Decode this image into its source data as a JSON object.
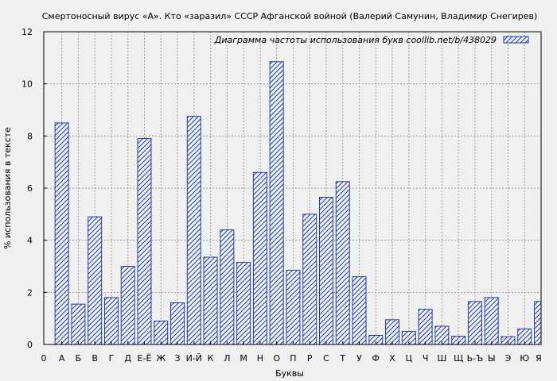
{
  "chart_data": {
    "type": "bar",
    "title": "Смертоносный вирус «А». Кто «заразил» СССР Афганской войной (Валерий Самунин, Владимир Снегирев)",
    "xlabel": "Буквы",
    "ylabel": "% использования в тексте",
    "legend": "Диаграмма частоты использования букв  coollib.net/b/438029",
    "legend_position": "top-right",
    "grid": true,
    "ylim": [
      0,
      12
    ],
    "yticks": [
      0,
      2,
      4,
      6,
      8,
      10,
      12
    ],
    "x_start_label": "0",
    "categories": [
      "А",
      "Б",
      "В",
      "Г",
      "Д",
      "Е-Ё",
      "Ж",
      "З",
      "И-Й",
      "К",
      "Л",
      "М",
      "Н",
      "О",
      "П",
      "Р",
      "С",
      "Т",
      "У",
      "Ф",
      "Х",
      "Ц",
      "Ч",
      "Ш",
      "Щ",
      "Ь-Ъ",
      "Ы",
      "Э",
      "Ю",
      "Я"
    ],
    "values": [
      8.5,
      1.55,
      4.9,
      1.8,
      3.0,
      7.9,
      0.9,
      1.6,
      8.75,
      3.35,
      4.4,
      3.15,
      6.6,
      10.85,
      2.85,
      5.0,
      5.65,
      6.25,
      2.6,
      0.35,
      0.95,
      0.5,
      1.35,
      0.7,
      0.32,
      1.65,
      1.8,
      0.3,
      0.6,
      1.65
    ],
    "colors": {
      "bar_stroke": "#1f3f9f",
      "hatch": "#1f3f9f",
      "grid": "#a0a0a0",
      "background": "#f0f0f0"
    }
  }
}
